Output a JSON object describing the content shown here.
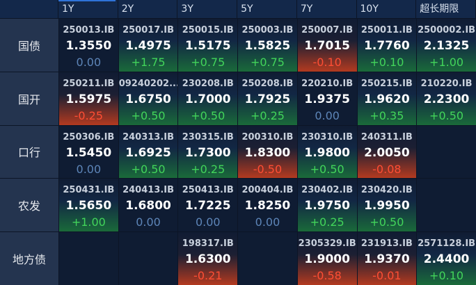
{
  "columns": [
    "1Y",
    "2Y",
    "3Y",
    "5Y",
    "7Y",
    "10Y",
    "超长期限"
  ],
  "rows": [
    {
      "label": "国债",
      "cells": [
        {
          "code": "250013.IB",
          "rate": "1.3550",
          "change": "0.00",
          "dir": "flat"
        },
        {
          "code": "250017.IB",
          "rate": "1.4975",
          "change": "+1.75",
          "dir": "up"
        },
        {
          "code": "250015.IB",
          "rate": "1.5175",
          "change": "+0.75",
          "dir": "up"
        },
        {
          "code": "250003.IB",
          "rate": "1.5825",
          "change": "+0.75",
          "dir": "up"
        },
        {
          "code": "250007.IB",
          "rate": "1.7015",
          "change": "-0.10",
          "dir": "down"
        },
        {
          "code": "250011.IB",
          "rate": "1.7760",
          "change": "+0.10",
          "dir": "up"
        },
        {
          "code": "2500002.IB",
          "rate": "2.1325",
          "change": "+1.00",
          "dir": "up"
        }
      ]
    },
    {
      "label": "国开",
      "cells": [
        {
          "code": "250211.IB",
          "rate": "1.5975",
          "change": "-0.25",
          "dir": "down"
        },
        {
          "code": "09240202...",
          "rate": "1.6750",
          "change": "+0.50",
          "dir": "up"
        },
        {
          "code": "230208.IB",
          "rate": "1.7000",
          "change": "+0.50",
          "dir": "up"
        },
        {
          "code": "250208.IB",
          "rate": "1.7925",
          "change": "+0.25",
          "dir": "up"
        },
        {
          "code": "220210.IB",
          "rate": "1.9375",
          "change": "0.00",
          "dir": "flat"
        },
        {
          "code": "250215.IB",
          "rate": "1.9620",
          "change": "+0.35",
          "dir": "up"
        },
        {
          "code": "210220.IB",
          "rate": "2.2300",
          "change": "+0.50",
          "dir": "up"
        }
      ]
    },
    {
      "label": "口行",
      "cells": [
        {
          "code": "250306.IB",
          "rate": "1.5450",
          "change": "0.00",
          "dir": "flat"
        },
        {
          "code": "240313.IB",
          "rate": "1.6925",
          "change": "+0.50",
          "dir": "up"
        },
        {
          "code": "230315.IB",
          "rate": "1.7300",
          "change": "+0.25",
          "dir": "up"
        },
        {
          "code": "200310.IB",
          "rate": "1.8300",
          "change": "-0.50",
          "dir": "down"
        },
        {
          "code": "230310.IB",
          "rate": "1.9800",
          "change": "+0.50",
          "dir": "up"
        },
        {
          "code": "240311.IB",
          "rate": "2.0050",
          "change": "-0.08",
          "dir": "down"
        },
        null
      ]
    },
    {
      "label": "农发",
      "cells": [
        {
          "code": "250431.IB",
          "rate": "1.5650",
          "change": "+1.00",
          "dir": "up"
        },
        {
          "code": "240413.IB",
          "rate": "1.6800",
          "change": "0.00",
          "dir": "flat"
        },
        {
          "code": "250413.IB",
          "rate": "1.7225",
          "change": "0.00",
          "dir": "flat"
        },
        {
          "code": "200404.IB",
          "rate": "1.8250",
          "change": "0.00",
          "dir": "flat"
        },
        {
          "code": "230402.IB",
          "rate": "1.9750",
          "change": "+0.25",
          "dir": "up"
        },
        {
          "code": "230420.IB",
          "rate": "1.9950",
          "change": "+0.50",
          "dir": "up"
        },
        null
      ]
    },
    {
      "label": "地方债",
      "cells": [
        null,
        null,
        {
          "code": "198317.IB",
          "rate": "1.6300",
          "change": "-0.21",
          "dir": "down"
        },
        null,
        {
          "code": "2305329.IB",
          "rate": "1.9000",
          "change": "-0.58",
          "dir": "down"
        },
        {
          "code": "231913.IB",
          "rate": "1.9370",
          "change": "-0.01",
          "dir": "down"
        },
        {
          "code": "2571128.IB",
          "rate": "2.4400",
          "change": "+0.10",
          "dir": "up"
        }
      ]
    }
  ]
}
